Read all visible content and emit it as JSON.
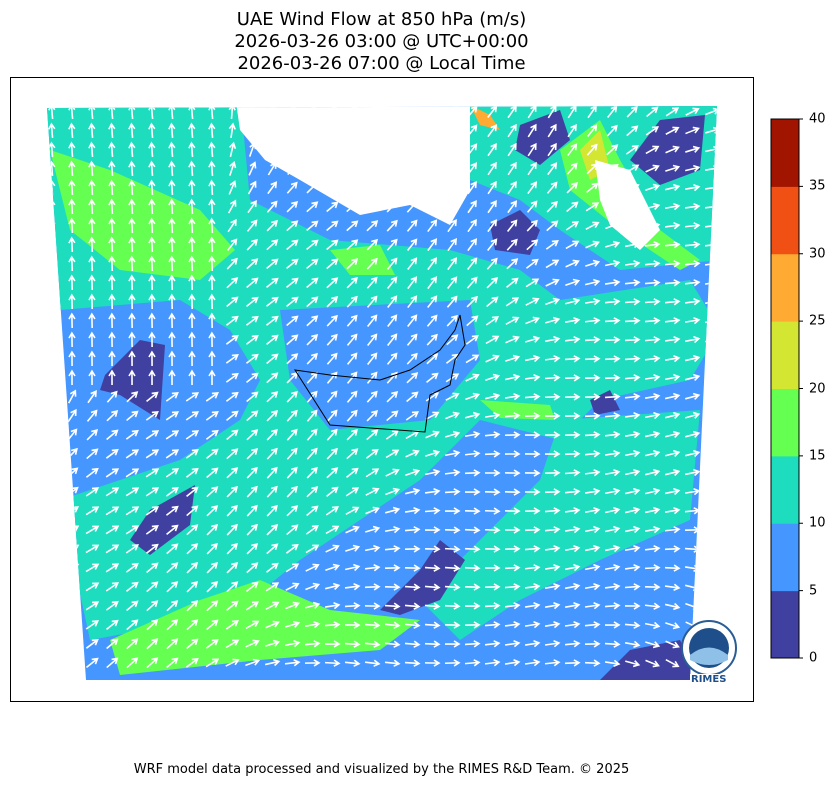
{
  "chart_data": {
    "type": "heatmap",
    "title": [
      "UAE Wind Flow at 850 hPa (m/s)",
      "2026-03-26 03:00 @ UTC+00:00",
      "2026-03-26 07:00 @ Local Time"
    ],
    "colorbar": {
      "ticks": [
        "0",
        "5",
        "10",
        "15",
        "20",
        "25",
        "30",
        "35",
        "40"
      ],
      "range": [
        0,
        40
      ],
      "colors": [
        "#4040a0",
        "#4696ff",
        "#1edcbe",
        "#64ff50",
        "#d2e632",
        "#ffaa32",
        "#f05014",
        "#a01400"
      ]
    },
    "overlay": "white wind vectors",
    "masked_color": "#ffffff"
  },
  "logo": {
    "text": "RIMES",
    "ring_text": "Regional Integrated Multi-Hazard Early Warning System"
  },
  "footer": "WRF model data processed and visualized by the RIMES R&D Team. © 2025"
}
